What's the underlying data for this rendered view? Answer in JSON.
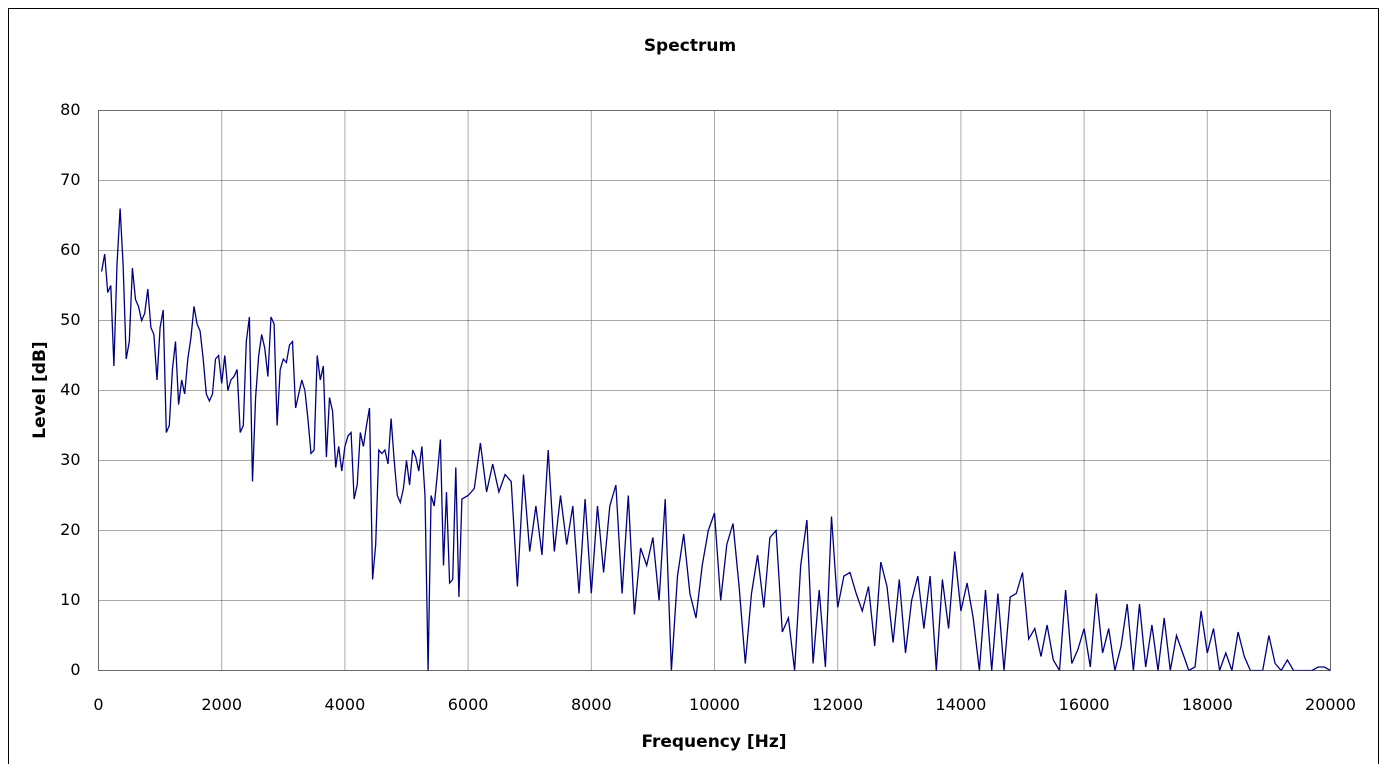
{
  "chart_data": {
    "type": "line",
    "title": "Spectrum",
    "x_label": "Frequency [Hz]",
    "y_label": "Level [dB]",
    "x": [
      50,
      100,
      150,
      200,
      250,
      300,
      350,
      400,
      450,
      500,
      550,
      600,
      650,
      700,
      750,
      800,
      850,
      900,
      950,
      1000,
      1050,
      1100,
      1150,
      1200,
      1250,
      1300,
      1350,
      1400,
      1450,
      1500,
      1550,
      1600,
      1650,
      1700,
      1750,
      1800,
      1850,
      1900,
      1950,
      2000,
      2050,
      2100,
      2150,
      2200,
      2250,
      2300,
      2350,
      2400,
      2450,
      2500,
      2550,
      2600,
      2650,
      2700,
      2750,
      2800,
      2850,
      2900,
      2950,
      3000,
      3050,
      3100,
      3150,
      3200,
      3250,
      3300,
      3350,
      3400,
      3450,
      3500,
      3550,
      3600,
      3650,
      3700,
      3750,
      3800,
      3850,
      3900,
      3950,
      4000,
      4050,
      4100,
      4150,
      4200,
      4250,
      4300,
      4350,
      4400,
      4450,
      4500,
      4550,
      4600,
      4650,
      4700,
      4750,
      4800,
      4850,
      4900,
      4950,
      5000,
      5050,
      5100,
      5150,
      5200,
      5250,
      5300,
      5350,
      5400,
      5450,
      5500,
      5550,
      5600,
      5650,
      5700,
      5750,
      5800,
      5850,
      5900,
      6000,
      6100,
      6200,
      6300,
      6400,
      6500,
      6600,
      6700,
      6800,
      6900,
      7000,
      7100,
      7200,
      7300,
      7400,
      7500,
      7600,
      7700,
      7800,
      7900,
      8000,
      8100,
      8200,
      8300,
      8400,
      8500,
      8600,
      8700,
      8800,
      8900,
      9000,
      9100,
      9200,
      9300,
      9400,
      9500,
      9600,
      9700,
      9800,
      9900,
      10000,
      10100,
      10200,
      10300,
      10400,
      10500,
      10600,
      10700,
      10800,
      10900,
      11000,
      11100,
      11200,
      11300,
      11400,
      11500,
      11600,
      11700,
      11800,
      11900,
      12000,
      12100,
      12200,
      12300,
      12400,
      12500,
      12600,
      12700,
      12800,
      12900,
      13000,
      13100,
      13200,
      13300,
      13400,
      13500,
      13600,
      13700,
      13800,
      13900,
      14000,
      14100,
      14200,
      14300,
      14400,
      14500,
      14600,
      14700,
      14800,
      14900,
      15000,
      15100,
      15200,
      15300,
      15400,
      15500,
      15600,
      15700,
      15800,
      15900,
      16000,
      16100,
      16200,
      16300,
      16400,
      16500,
      16600,
      16700,
      16800,
      16900,
      17000,
      17100,
      17200,
      17300,
      17400,
      17500,
      17600,
      17700,
      17800,
      17900,
      18000,
      18100,
      18200,
      18300,
      18400,
      18500,
      18600,
      18700,
      18800,
      18900,
      19000,
      19100,
      19200,
      19300,
      19400,
      19500,
      19600,
      19700,
      19800,
      19900,
      20000
    ],
    "series": [
      {
        "name": "Level",
        "color": "#000080",
        "values": [
          57,
          59.5,
          54,
          55,
          43.5,
          58,
          66,
          58,
          44.5,
          47,
          57.5,
          53,
          52,
          50,
          51,
          54.5,
          49,
          48,
          41.5,
          49,
          51.5,
          34,
          35,
          43,
          47,
          38,
          41.5,
          39.5,
          44.5,
          47.5,
          52,
          49.5,
          48.5,
          44.5,
          39.5,
          38.5,
          39.5,
          44.5,
          45,
          41,
          45,
          40,
          41.5,
          42,
          43,
          34,
          35,
          47,
          50.5,
          27,
          39,
          45,
          48,
          46,
          42,
          50.5,
          49.5,
          35,
          43,
          44.5,
          44,
          46.5,
          47,
          37.5,
          39.5,
          41.5,
          40,
          36,
          31,
          31.5,
          45,
          41.5,
          43.5,
          30.5,
          39,
          37,
          29,
          32,
          28.5,
          32,
          33.5,
          34,
          24.5,
          26.5,
          34,
          32,
          35,
          37.5,
          13,
          18,
          31.5,
          31,
          31.5,
          29.5,
          36,
          30,
          25,
          24,
          26,
          30,
          26.5,
          31.5,
          30.5,
          28.5,
          32,
          25,
          0,
          25,
          23.5,
          28,
          33,
          15,
          25.5,
          12.5,
          13,
          29,
          10.5,
          24.5,
          25,
          26,
          32.5,
          25.5,
          29.5,
          25.5,
          28,
          27,
          12,
          28,
          17,
          23.5,
          16.5,
          31.5,
          17,
          25,
          18,
          23.5,
          11,
          24.5,
          11,
          23.5,
          14,
          23.5,
          26.5,
          11,
          25,
          8,
          17.5,
          15,
          19,
          10,
          24.5,
          0,
          13.5,
          19.5,
          11,
          7.5,
          15,
          20,
          22.5,
          10,
          18,
          21,
          12,
          1,
          11,
          16.5,
          9,
          19,
          20,
          5.5,
          7.5,
          0,
          15,
          21.5,
          1,
          11.5,
          0.5,
          22,
          9,
          13.5,
          14,
          11,
          8.5,
          12,
          3.5,
          15.5,
          12,
          4,
          13,
          2.5,
          10,
          13.5,
          6,
          13.5,
          0,
          13,
          6,
          17,
          8.5,
          12.5,
          7.5,
          0,
          11.5,
          0,
          11,
          0,
          10.5,
          11,
          14,
          4.5,
          6,
          2,
          6.5,
          1.5,
          0,
          11.5,
          1,
          3,
          6,
          0.5,
          11,
          2.5,
          6,
          0,
          3.5,
          9.5,
          0,
          9.5,
          0.5,
          6.5,
          0,
          7.5,
          0,
          5,
          2.5,
          0,
          0.5,
          8.5,
          2.5,
          6,
          0,
          2.5,
          0,
          5.5,
          2,
          0,
          0,
          0,
          5,
          1,
          0,
          1.5,
          0,
          0,
          0,
          0,
          0.5,
          0.5,
          0
        ]
      }
    ],
    "xlim": [
      0,
      20000
    ],
    "xticks": [
      0,
      2000,
      4000,
      6000,
      8000,
      10000,
      12000,
      14000,
      16000,
      18000,
      20000
    ],
    "ylim": [
      0,
      80
    ],
    "yticks": [
      0,
      10,
      20,
      30,
      40,
      50,
      60,
      70,
      80
    ],
    "grid": true
  }
}
